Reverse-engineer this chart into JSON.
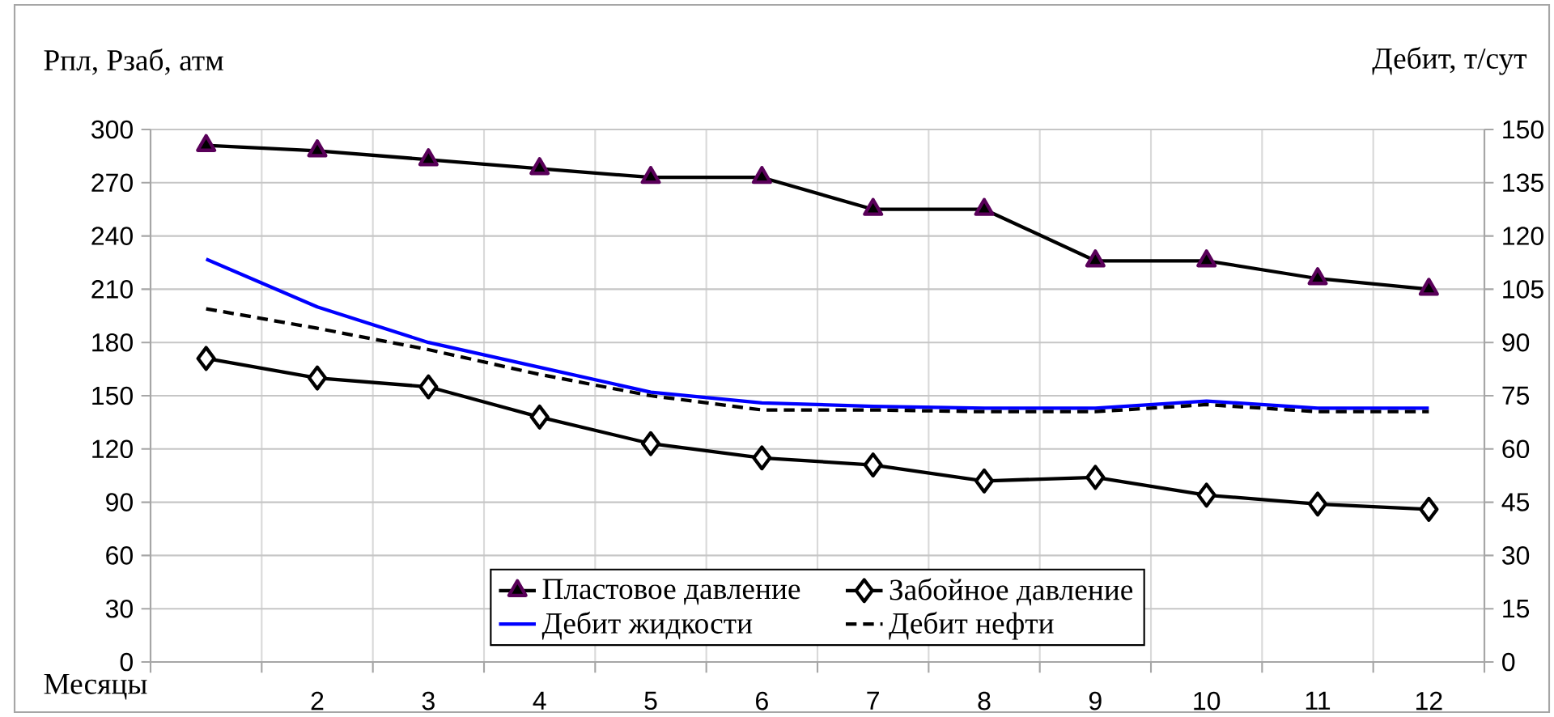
{
  "chart_data": {
    "type": "line",
    "xlabel": "Месяцы",
    "ylabel": "Рпл, Рзаб, атм",
    "y2label": "Дебит, т/сут",
    "categories": [
      null,
      "2",
      "3",
      "4",
      "5",
      "6",
      "7",
      "8",
      "9",
      "10",
      "11",
      "12"
    ],
    "series": [
      {
        "name": "Пластовое давление",
        "color": "#000000",
        "marker": "triangle",
        "line_style": "solid",
        "values": [
          291,
          288,
          283,
          278,
          273,
          273,
          255,
          255,
          226,
          226,
          216,
          210
        ]
      },
      {
        "name": "Забойное давление",
        "color": "#000000",
        "marker": "diamond",
        "line_style": "solid",
        "values": [
          171,
          160,
          155,
          138,
          123,
          115,
          111,
          102,
          104,
          94,
          89,
          86
        ]
      },
      {
        "name": "Дебит жидкости",
        "color": "#0000ff",
        "marker": "none",
        "line_style": "solid",
        "axis": "y2",
        "values": [
          113.5,
          100,
          90,
          83,
          76,
          73,
          72,
          71.5,
          71.5,
          73.5,
          71.5,
          71.5
        ]
      },
      {
        "name": "Дебит нефти",
        "color": "#000000",
        "marker": "none",
        "line_style": "dashed",
        "axis": "y2",
        "values": [
          99.5,
          94,
          88,
          81,
          75,
          71,
          71,
          70.5,
          70.5,
          72.5,
          70.5,
          70.5
        ]
      }
    ],
    "ylim": [
      0,
      300
    ],
    "yticks": [
      0,
      30,
      60,
      90,
      120,
      150,
      180,
      210,
      240,
      270,
      300
    ],
    "y2lim": [
      0,
      150
    ],
    "y2ticks": [
      0,
      15,
      30,
      45,
      60,
      75,
      90,
      105,
      120,
      135,
      150
    ],
    "grid": true,
    "legend": "bottom"
  }
}
